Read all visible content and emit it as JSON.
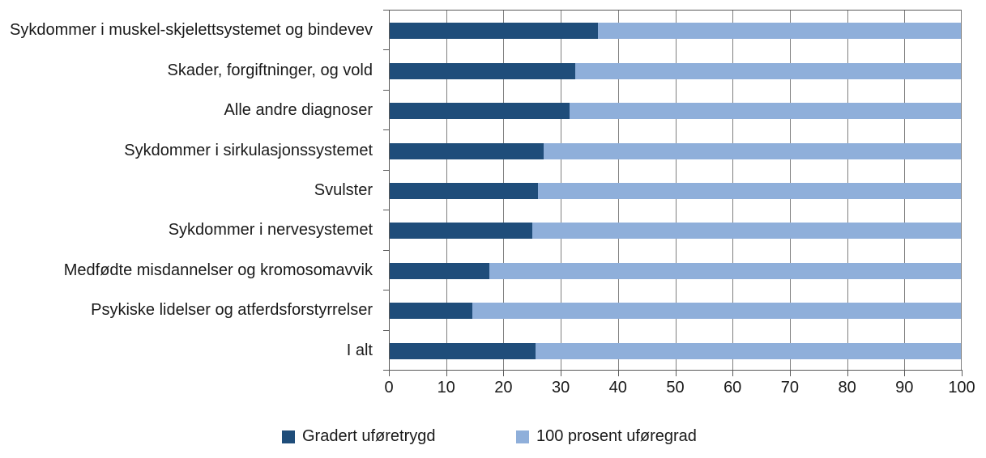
{
  "chart_data": {
    "type": "bar",
    "orientation": "horizontal",
    "stacked": true,
    "unit": "percent",
    "categories": [
      "Sykdommer i muskel-skjelettsystemet og bindevev",
      "Skader, forgiftninger, og vold",
      "Alle andre diagnoser",
      "Sykdommer i sirkulasjonssystemet",
      "Svulster",
      "Sykdommer i nervesystemet",
      "Medfødte misdannelser og kromosomavvik",
      "Psykiske lidelser og atferdsforstyrrelser",
      "I alt"
    ],
    "series": [
      {
        "name": "Gradert uføretrygd",
        "color": "#1F4D7A",
        "values": [
          36.5,
          32.5,
          31.5,
          27,
          26,
          25,
          17.5,
          14.5,
          25.5
        ]
      },
      {
        "name": "100 prosent uføregrad",
        "color": "#8FAFDA",
        "values": [
          63.5,
          67.5,
          68.5,
          73,
          74,
          75,
          82.5,
          85.5,
          74.5
        ]
      }
    ],
    "xlim": [
      0,
      100
    ],
    "xticks": [
      0,
      10,
      20,
      30,
      40,
      50,
      60,
      70,
      80,
      90,
      100
    ],
    "grid": "vertical",
    "legend_position": "bottom",
    "title": "",
    "xlabel": "",
    "ylabel": ""
  },
  "colors": {
    "dark_bar": "#1F4D7A",
    "light_bar": "#8FAFDA",
    "gridline": "#7f7f7f",
    "axis": "#595959",
    "text": "#1a1a1a",
    "background": "#ffffff"
  }
}
